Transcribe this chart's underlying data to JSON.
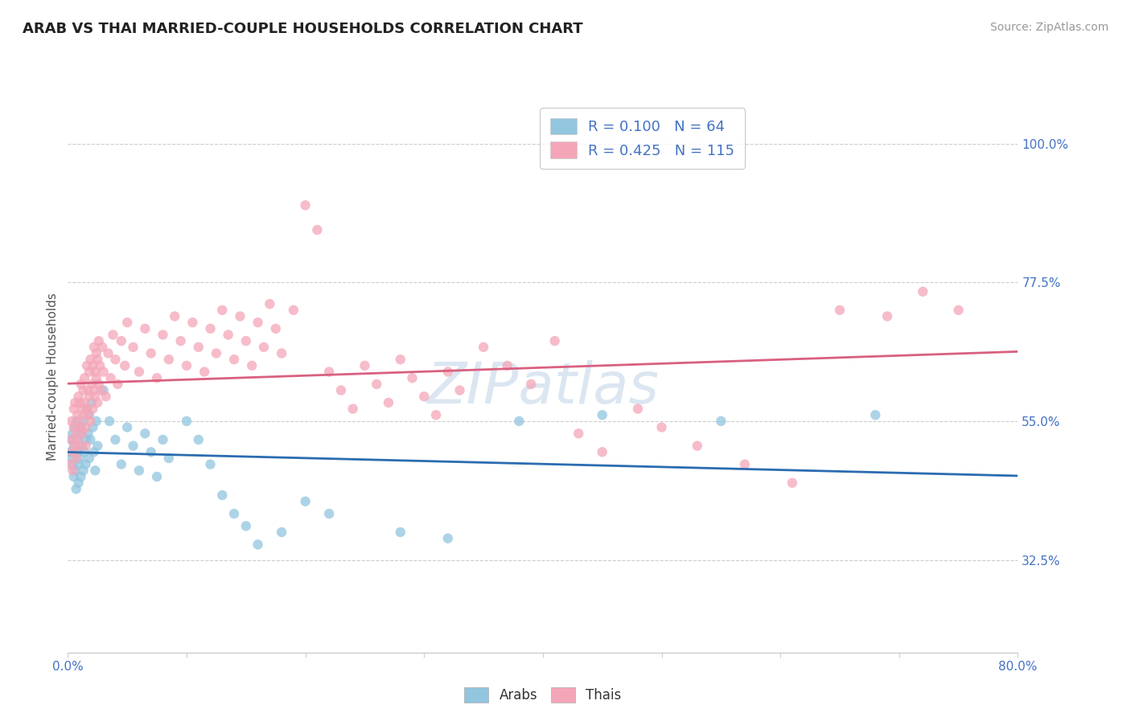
{
  "title": "ARAB VS THAI MARRIED-COUPLE HOUSEHOLDS CORRELATION CHART",
  "source": "Source: ZipAtlas.com",
  "ylabel": "Married-couple Households",
  "ytick_labels": [
    "32.5%",
    "55.0%",
    "77.5%",
    "100.0%"
  ],
  "ytick_values": [
    0.325,
    0.55,
    0.775,
    1.0
  ],
  "xlim": [
    0.0,
    0.8
  ],
  "ylim": [
    0.175,
    1.07
  ],
  "arab_color": "#92c5de",
  "thai_color": "#f4a6b8",
  "arab_line_color": "#2b6cb0",
  "thai_line_color": "#d96080",
  "watermark": "ZIPatlas",
  "background_color": "#ffffff",
  "grid_color": "#cccccc",
  "arab_R": 0.1,
  "arab_N": 64,
  "thai_R": 0.425,
  "thai_N": 115,
  "arab_points": [
    [
      0.002,
      0.5
    ],
    [
      0.003,
      0.49
    ],
    [
      0.003,
      0.52
    ],
    [
      0.004,
      0.48
    ],
    [
      0.004,
      0.53
    ],
    [
      0.005,
      0.46
    ],
    [
      0.005,
      0.51
    ],
    [
      0.006,
      0.54
    ],
    [
      0.006,
      0.47
    ],
    [
      0.007,
      0.55
    ],
    [
      0.007,
      0.44
    ],
    [
      0.008,
      0.5
    ],
    [
      0.008,
      0.52
    ],
    [
      0.009,
      0.48
    ],
    [
      0.009,
      0.45
    ],
    [
      0.01,
      0.53
    ],
    [
      0.01,
      0.49
    ],
    [
      0.011,
      0.46
    ],
    [
      0.011,
      0.54
    ],
    [
      0.012,
      0.51
    ],
    [
      0.013,
      0.47
    ],
    [
      0.013,
      0.55
    ],
    [
      0.014,
      0.5
    ],
    [
      0.015,
      0.48
    ],
    [
      0.015,
      0.52
    ],
    [
      0.016,
      0.57
    ],
    [
      0.017,
      0.53
    ],
    [
      0.018,
      0.49
    ],
    [
      0.018,
      0.56
    ],
    [
      0.019,
      0.52
    ],
    [
      0.02,
      0.58
    ],
    [
      0.021,
      0.54
    ],
    [
      0.022,
      0.5
    ],
    [
      0.023,
      0.47
    ],
    [
      0.024,
      0.55
    ],
    [
      0.025,
      0.51
    ],
    [
      0.03,
      0.6
    ],
    [
      0.035,
      0.55
    ],
    [
      0.04,
      0.52
    ],
    [
      0.045,
      0.48
    ],
    [
      0.05,
      0.54
    ],
    [
      0.055,
      0.51
    ],
    [
      0.06,
      0.47
    ],
    [
      0.065,
      0.53
    ],
    [
      0.07,
      0.5
    ],
    [
      0.075,
      0.46
    ],
    [
      0.08,
      0.52
    ],
    [
      0.085,
      0.49
    ],
    [
      0.1,
      0.55
    ],
    [
      0.11,
      0.52
    ],
    [
      0.12,
      0.48
    ],
    [
      0.13,
      0.43
    ],
    [
      0.14,
      0.4
    ],
    [
      0.15,
      0.38
    ],
    [
      0.16,
      0.35
    ],
    [
      0.18,
      0.37
    ],
    [
      0.2,
      0.42
    ],
    [
      0.22,
      0.4
    ],
    [
      0.28,
      0.37
    ],
    [
      0.32,
      0.36
    ],
    [
      0.38,
      0.55
    ],
    [
      0.45,
      0.56
    ],
    [
      0.55,
      0.55
    ],
    [
      0.68,
      0.56
    ]
  ],
  "thai_points": [
    [
      0.002,
      0.48
    ],
    [
      0.003,
      0.52
    ],
    [
      0.003,
      0.55
    ],
    [
      0.004,
      0.5
    ],
    [
      0.004,
      0.47
    ],
    [
      0.005,
      0.54
    ],
    [
      0.005,
      0.57
    ],
    [
      0.006,
      0.51
    ],
    [
      0.006,
      0.58
    ],
    [
      0.007,
      0.53
    ],
    [
      0.007,
      0.49
    ],
    [
      0.008,
      0.56
    ],
    [
      0.008,
      0.52
    ],
    [
      0.009,
      0.59
    ],
    [
      0.009,
      0.55
    ],
    [
      0.01,
      0.51
    ],
    [
      0.01,
      0.58
    ],
    [
      0.011,
      0.54
    ],
    [
      0.011,
      0.61
    ],
    [
      0.012,
      0.57
    ],
    [
      0.012,
      0.53
    ],
    [
      0.013,
      0.6
    ],
    [
      0.013,
      0.56
    ],
    [
      0.014,
      0.62
    ],
    [
      0.014,
      0.58
    ],
    [
      0.015,
      0.54
    ],
    [
      0.015,
      0.51
    ],
    [
      0.016,
      0.57
    ],
    [
      0.016,
      0.64
    ],
    [
      0.017,
      0.6
    ],
    [
      0.017,
      0.56
    ],
    [
      0.018,
      0.63
    ],
    [
      0.018,
      0.59
    ],
    [
      0.019,
      0.65
    ],
    [
      0.019,
      0.55
    ],
    [
      0.02,
      0.61
    ],
    [
      0.021,
      0.57
    ],
    [
      0.021,
      0.64
    ],
    [
      0.022,
      0.6
    ],
    [
      0.022,
      0.67
    ],
    [
      0.023,
      0.63
    ],
    [
      0.023,
      0.59
    ],
    [
      0.024,
      0.66
    ],
    [
      0.024,
      0.62
    ],
    [
      0.025,
      0.58
    ],
    [
      0.025,
      0.65
    ],
    [
      0.026,
      0.61
    ],
    [
      0.026,
      0.68
    ],
    [
      0.027,
      0.64
    ],
    [
      0.028,
      0.6
    ],
    [
      0.029,
      0.67
    ],
    [
      0.03,
      0.63
    ],
    [
      0.032,
      0.59
    ],
    [
      0.034,
      0.66
    ],
    [
      0.036,
      0.62
    ],
    [
      0.038,
      0.69
    ],
    [
      0.04,
      0.65
    ],
    [
      0.042,
      0.61
    ],
    [
      0.045,
      0.68
    ],
    [
      0.048,
      0.64
    ],
    [
      0.05,
      0.71
    ],
    [
      0.055,
      0.67
    ],
    [
      0.06,
      0.63
    ],
    [
      0.065,
      0.7
    ],
    [
      0.07,
      0.66
    ],
    [
      0.075,
      0.62
    ],
    [
      0.08,
      0.69
    ],
    [
      0.085,
      0.65
    ],
    [
      0.09,
      0.72
    ],
    [
      0.095,
      0.68
    ],
    [
      0.1,
      0.64
    ],
    [
      0.105,
      0.71
    ],
    [
      0.11,
      0.67
    ],
    [
      0.115,
      0.63
    ],
    [
      0.12,
      0.7
    ],
    [
      0.125,
      0.66
    ],
    [
      0.13,
      0.73
    ],
    [
      0.135,
      0.69
    ],
    [
      0.14,
      0.65
    ],
    [
      0.145,
      0.72
    ],
    [
      0.15,
      0.68
    ],
    [
      0.155,
      0.64
    ],
    [
      0.16,
      0.71
    ],
    [
      0.165,
      0.67
    ],
    [
      0.17,
      0.74
    ],
    [
      0.175,
      0.7
    ],
    [
      0.18,
      0.66
    ],
    [
      0.19,
      0.73
    ],
    [
      0.2,
      0.9
    ],
    [
      0.21,
      0.86
    ],
    [
      0.22,
      0.63
    ],
    [
      0.23,
      0.6
    ],
    [
      0.24,
      0.57
    ],
    [
      0.25,
      0.64
    ],
    [
      0.26,
      0.61
    ],
    [
      0.27,
      0.58
    ],
    [
      0.28,
      0.65
    ],
    [
      0.29,
      0.62
    ],
    [
      0.3,
      0.59
    ],
    [
      0.31,
      0.56
    ],
    [
      0.32,
      0.63
    ],
    [
      0.33,
      0.6
    ],
    [
      0.35,
      0.67
    ],
    [
      0.37,
      0.64
    ],
    [
      0.39,
      0.61
    ],
    [
      0.41,
      0.68
    ],
    [
      0.43,
      0.53
    ],
    [
      0.45,
      0.5
    ],
    [
      0.48,
      0.57
    ],
    [
      0.5,
      0.54
    ],
    [
      0.53,
      0.51
    ],
    [
      0.57,
      0.48
    ],
    [
      0.61,
      0.45
    ],
    [
      0.65,
      0.73
    ],
    [
      0.69,
      0.72
    ],
    [
      0.72,
      0.76
    ],
    [
      0.75,
      0.73
    ]
  ]
}
